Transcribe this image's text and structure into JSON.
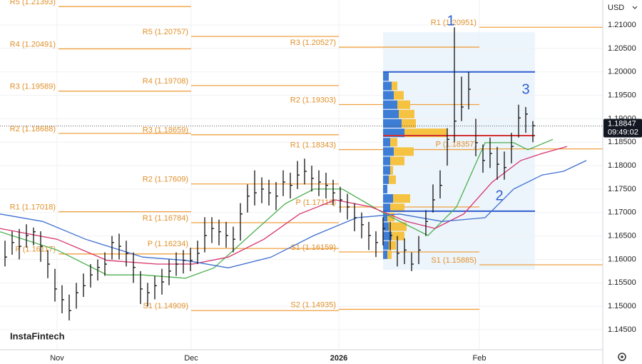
{
  "chart_data": {
    "type": "ohlc",
    "currency": "USD",
    "xlim": [
      -0.7,
      83.8
    ],
    "ylim": [
      1.14074,
      1.21533
    ],
    "xticks": [
      {
        "value": 7.3,
        "label": "Nov"
      },
      {
        "value": 26.1,
        "label": "Dec"
      },
      {
        "value": 46.8,
        "label": "2026"
      },
      {
        "value": 66.5,
        "label": "Feb"
      }
    ],
    "yticks": [
      {
        "value": 1.145,
        "label": "1.14500"
      },
      {
        "value": 1.15,
        "label": "1.15000"
      },
      {
        "value": 1.155,
        "label": "1.15500"
      },
      {
        "value": 1.16,
        "label": "1.16000"
      },
      {
        "value": 1.165,
        "label": "1.16500"
      },
      {
        "value": 1.17,
        "label": "1.17000"
      },
      {
        "value": 1.175,
        "label": "1.17500"
      },
      {
        "value": 1.18,
        "label": "1.18000"
      },
      {
        "value": 1.185,
        "label": "1.18500"
      },
      {
        "value": 1.19,
        "label": "1.19000"
      },
      {
        "value": 1.195,
        "label": "1.19500"
      },
      {
        "value": 1.2,
        "label": "1.20000"
      },
      {
        "value": 1.205,
        "label": "1.20500"
      },
      {
        "value": 1.21,
        "label": "1.21000"
      }
    ],
    "grid": true,
    "bar_color": "#111111",
    "high": [
      1.164,
      1.166,
      1.1665,
      1.1675,
      1.1668,
      1.166,
      1.162,
      1.158,
      1.1545,
      1.1525,
      1.155,
      1.157,
      1.159,
      1.16,
      1.1615,
      1.165,
      1.1655,
      1.164,
      1.1615,
      1.1575,
      1.155,
      1.1565,
      1.158,
      1.16,
      1.1615,
      1.162,
      1.1625,
      1.164,
      1.169,
      1.169,
      1.1685,
      1.168,
      1.167,
      1.172,
      1.176,
      1.179,
      1.1775,
      1.177,
      1.1765,
      1.179,
      1.1785,
      1.181,
      1.1815,
      1.18,
      1.179,
      1.1785,
      1.177,
      1.1755,
      1.174,
      1.172,
      1.17,
      1.168,
      1.166,
      1.169,
      1.168,
      1.165,
      1.1645,
      1.1615,
      1.165,
      1.1705,
      1.176,
      1.179,
      1.188,
      1.2095,
      1.199,
      1.2,
      1.19,
      1.1845,
      1.186,
      1.184,
      1.183,
      1.187,
      1.193,
      1.1925,
      1.1895
    ],
    "low": [
      1.1585,
      1.161,
      1.16,
      1.1625,
      1.163,
      1.1595,
      1.156,
      1.151,
      1.1485,
      1.147,
      1.1495,
      1.152,
      1.154,
      1.1555,
      1.1565,
      1.16,
      1.16,
      1.1585,
      1.155,
      1.1505,
      1.15,
      1.1515,
      1.1525,
      1.1545,
      1.1565,
      1.157,
      1.1575,
      1.159,
      1.1615,
      1.1635,
      1.163,
      1.1625,
      1.1615,
      1.164,
      1.17,
      1.1715,
      1.172,
      1.1715,
      1.1705,
      1.1735,
      1.173,
      1.175,
      1.176,
      1.1745,
      1.1735,
      1.173,
      1.1715,
      1.17,
      1.1685,
      1.166,
      1.1645,
      1.162,
      1.1605,
      1.163,
      1.162,
      1.1585,
      1.159,
      1.1575,
      1.159,
      1.165,
      1.17,
      1.173,
      1.18,
      1.185,
      1.1895,
      1.192,
      1.182,
      1.1785,
      1.1795,
      1.177,
      1.177,
      1.1805,
      1.186,
      1.187,
      1.185
    ],
    "close": [
      1.1605,
      1.1636,
      1.1628,
      1.1651,
      1.1659,
      1.1628,
      1.159,
      1.1537,
      1.1514,
      1.1491,
      1.1529,
      1.1544,
      1.1567,
      1.1583,
      1.159,
      1.1636,
      1.1628,
      1.1613,
      1.1583,
      1.1537,
      1.1529,
      1.1544,
      1.1552,
      1.1575,
      1.159,
      1.1598,
      1.1598,
      1.1613,
      1.1651,
      1.1666,
      1.1659,
      1.1651,
      1.1643,
      1.1697,
      1.1735,
      1.1742,
      1.175,
      1.1742,
      1.1735,
      1.1765,
      1.1758,
      1.178,
      1.1788,
      1.1773,
      1.1765,
      1.1758,
      1.1742,
      1.1727,
      1.1712,
      1.1689,
      1.1674,
      1.1651,
      1.1636,
      1.1666,
      1.1651,
      1.1613,
      1.162,
      1.159,
      1.162,
      1.1681,
      1.1727,
      1.1758,
      1.1856,
      1.1895,
      1.1925,
      1.1963,
      1.1849,
      1.1811,
      1.1826,
      1.1803,
      1.1796,
      1.1841,
      1.1902,
      1.191,
      1.1885
    ],
    "lines": [
      {
        "color": "#4caf50",
        "x": [
          -0.7,
          7.3,
          14.3,
          19.3,
          25.3,
          29.3,
          34.3,
          39.3,
          43.3,
          47.3,
          53.3,
          59.3,
          63.3,
          67.3,
          71.3,
          73.3,
          76.8
        ],
        "values": [
          1.1659,
          1.162,
          1.1567,
          1.1567,
          1.156,
          1.1582,
          1.1651,
          1.1719,
          1.175,
          1.175,
          1.1697,
          1.1651,
          1.1712,
          1.1849,
          1.1849,
          1.1834,
          1.1856
        ]
      },
      {
        "color": "#d6336c",
        "x": [
          -0.7,
          7.3,
          14.3,
          21.3,
          26.3,
          31.3,
          36.3,
          41.3,
          46.3,
          51.3,
          56.3,
          60.3,
          64.3,
          68.3,
          72.3,
          75.3,
          78.8
        ],
        "values": [
          1.1666,
          1.1643,
          1.1598,
          1.159,
          1.159,
          1.1605,
          1.1643,
          1.1697,
          1.1727,
          1.1712,
          1.1681,
          1.1666,
          1.1697,
          1.1765,
          1.1811,
          1.1826,
          1.1841
        ]
      },
      {
        "color": "#3f6fd1",
        "x": [
          -0.7,
          5.3,
          11.3,
          19.3,
          25.3,
          31.3,
          37.3,
          43.3,
          49.3,
          55.3,
          61.3,
          67.3,
          71.3,
          75.3,
          78.3,
          81.5
        ],
        "values": [
          1.1697,
          1.1681,
          1.1643,
          1.1605,
          1.1598,
          1.1582,
          1.1605,
          1.1651,
          1.1689,
          1.1697,
          1.1681,
          1.1689,
          1.175,
          1.178,
          1.1788,
          1.1811
        ]
      }
    ],
    "pivots": [
      {
        "x": [
          7.5,
          26.1
        ],
        "levels": [
          {
            "label": "R5 (1.21393)",
            "value": 1.21393
          },
          {
            "label": "R4 (1.20491)",
            "value": 1.20491
          },
          {
            "label": "R3 (1.19589)",
            "value": 1.19589
          },
          {
            "label": "R2 (1.18688)",
            "value": 1.18688
          },
          {
            "label": "R1 (1.17018)",
            "value": 1.17018
          },
          {
            "label": "P (1.16117)",
            "value": 1.16117
          }
        ]
      },
      {
        "x": [
          26.1,
          46.8
        ],
        "levels": [
          {
            "label": "R5 (1.20757)",
            "value": 1.20757
          },
          {
            "label": "R4 (1.19708)",
            "value": 1.19708
          },
          {
            "label": "R3 (1.18659)",
            "value": 1.18659
          },
          {
            "label": "R2 (1.17609)",
            "value": 1.17609
          },
          {
            "label": "R1 (1.16784)",
            "value": 1.16784
          },
          {
            "label": "P (1.16234)",
            "value": 1.16234
          },
          {
            "label": "S1 (1.14909)",
            "value": 1.14909
          }
        ]
      },
      {
        "x": [
          46.8,
          66.5
        ],
        "levels": [
          {
            "label": "R3 (1.20527)",
            "value": 1.20527
          },
          {
            "label": "R2 (1.19303)",
            "value": 1.19303
          },
          {
            "label": "R1 (1.18343)",
            "value": 1.18343
          },
          {
            "label": "P (1.17119)",
            "value": 1.17119
          },
          {
            "label": "S1 (1.16159)",
            "value": 1.16159
          },
          {
            "label": "S2 (1.14935)",
            "value": 1.14935
          }
        ]
      },
      {
        "x": [
          66.5,
          83.8
        ],
        "levels": [
          {
            "label": "R1 (1.20951)",
            "value": 1.20951
          },
          {
            "label": "P (1.18357)",
            "value": 1.18357
          },
          {
            "label": "S1 (1.15885)",
            "value": 1.15885
          }
        ]
      }
    ],
    "levels": [
      {
        "value": 1.2,
        "color": "#2f5fd0",
        "x": [
          53.0,
          74.3
        ]
      },
      {
        "value": 1.1703,
        "color": "#2f5fd0",
        "x": [
          53.0,
          74.3
        ]
      },
      {
        "value": 1.1864,
        "color": "#d32f2f",
        "x": [
          53.0,
          74.3
        ]
      }
    ],
    "profile": {
      "start": 53.0,
      "xlim": [
        0,
        100
      ],
      "prices": [
        1.199,
        1.197,
        1.195,
        1.193,
        1.191,
        1.189,
        1.187,
        1.185,
        1.183,
        1.181,
        1.179,
        1.177,
        1.175,
        1.173,
        1.171,
        1.169,
        1.167,
        1.165,
        1.163,
        1.161
      ],
      "segments": [
        {
          "color": "#3d7dd6",
          "values": [
            8,
            12,
            15,
            20,
            22,
            26,
            30,
            10,
            15,
            10,
            10,
            8,
            6,
            14,
            10,
            6,
            8,
            12,
            8,
            6
          ]
        },
        {
          "color": "#f5c242",
          "values": [
            0,
            8,
            14,
            18,
            22,
            20,
            60,
            10,
            28,
            20,
            4,
            10,
            0,
            24,
            20,
            10,
            25,
            18,
            10,
            6
          ]
        }
      ]
    },
    "annotations": [
      "1",
      "2",
      "3"
    ],
    "last_price": 1.18847,
    "last_time": "09:49:02",
    "watermark": "InstaFintech"
  }
}
